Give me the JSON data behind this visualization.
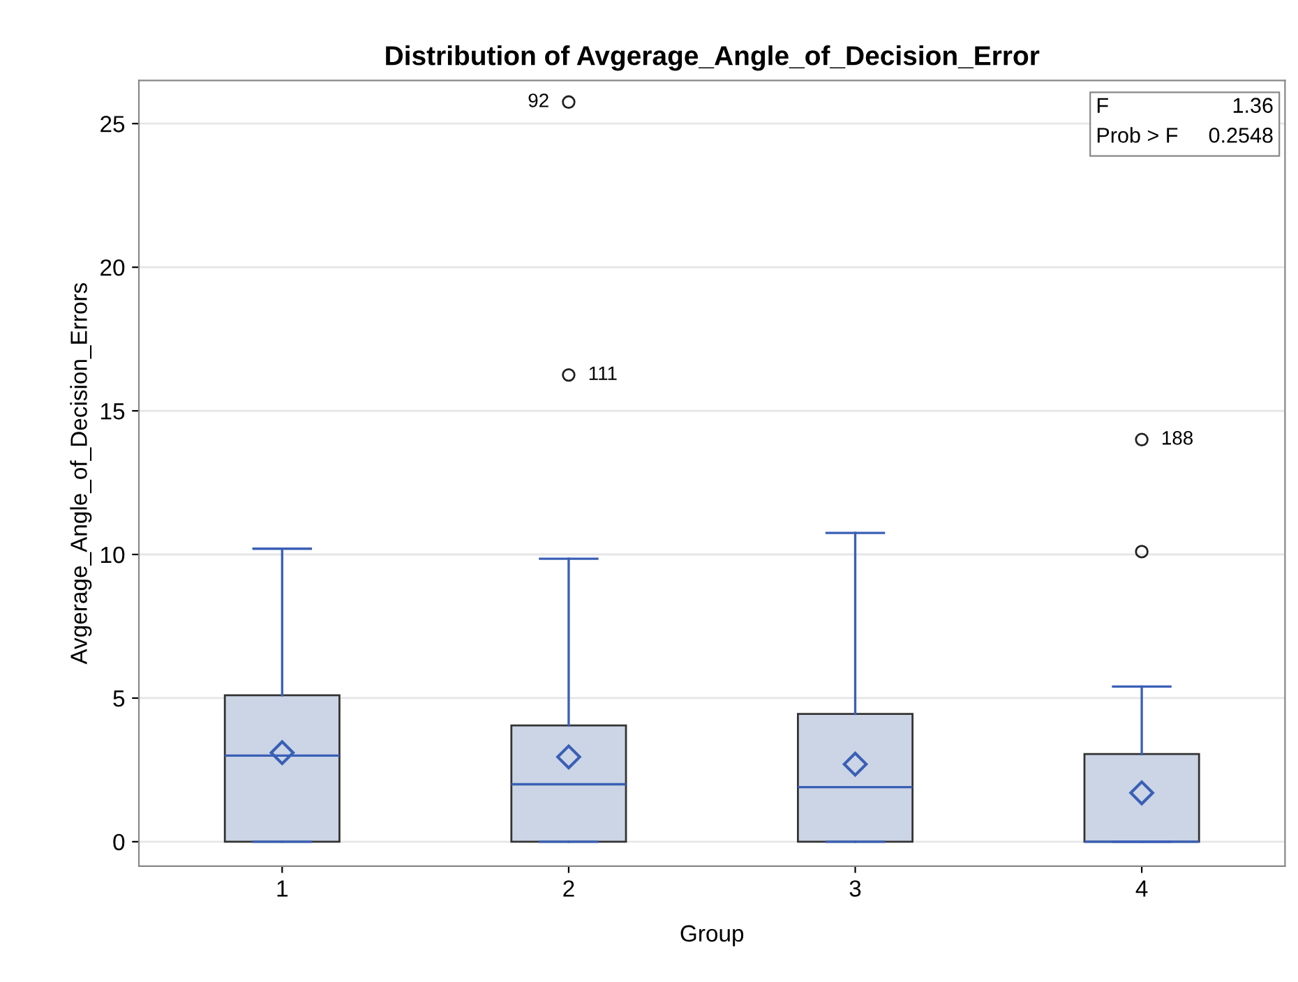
{
  "chart_data": {
    "type": "box",
    "title": "Distribution of Avgerage_Angle_of_Decision_Error",
    "xlabel": "Group",
    "ylabel": "Avgerage_Angle_of_Decision_Errors",
    "categories": [
      "1",
      "2",
      "3",
      "4"
    ],
    "series": [
      {
        "color": "#cbd5e5",
        "boxes": [
          {
            "low": 0,
            "q1": 0,
            "median": 3.0,
            "q3": 5.1,
            "high": 10.2,
            "mean": 3.1
          },
          {
            "low": 0,
            "q1": 0,
            "median": 2.0,
            "q3": 4.05,
            "high": 9.85,
            "mean": 2.95,
            "outliers": [
              25.75,
              16.25
            ]
          },
          {
            "low": 0,
            "q1": 0,
            "median": 1.9,
            "q3": 4.45,
            "high": 10.75,
            "mean": 2.7
          },
          {
            "low": 0,
            "q1": 0,
            "median": 0,
            "q3": 3.05,
            "high": 5.4,
            "mean": 1.7,
            "outliers": [
              14.0,
              10.1
            ]
          }
        ]
      }
    ],
    "ylim": [
      -0.85,
      26.5
    ],
    "yticks": [
      0,
      5,
      10,
      15,
      20,
      25
    ],
    "grid": "y",
    "legend": false,
    "annotations": [
      "92",
      "111",
      "188",
      "F",
      "1.36",
      "Prob > F",
      "0.2548"
    ]
  }
}
